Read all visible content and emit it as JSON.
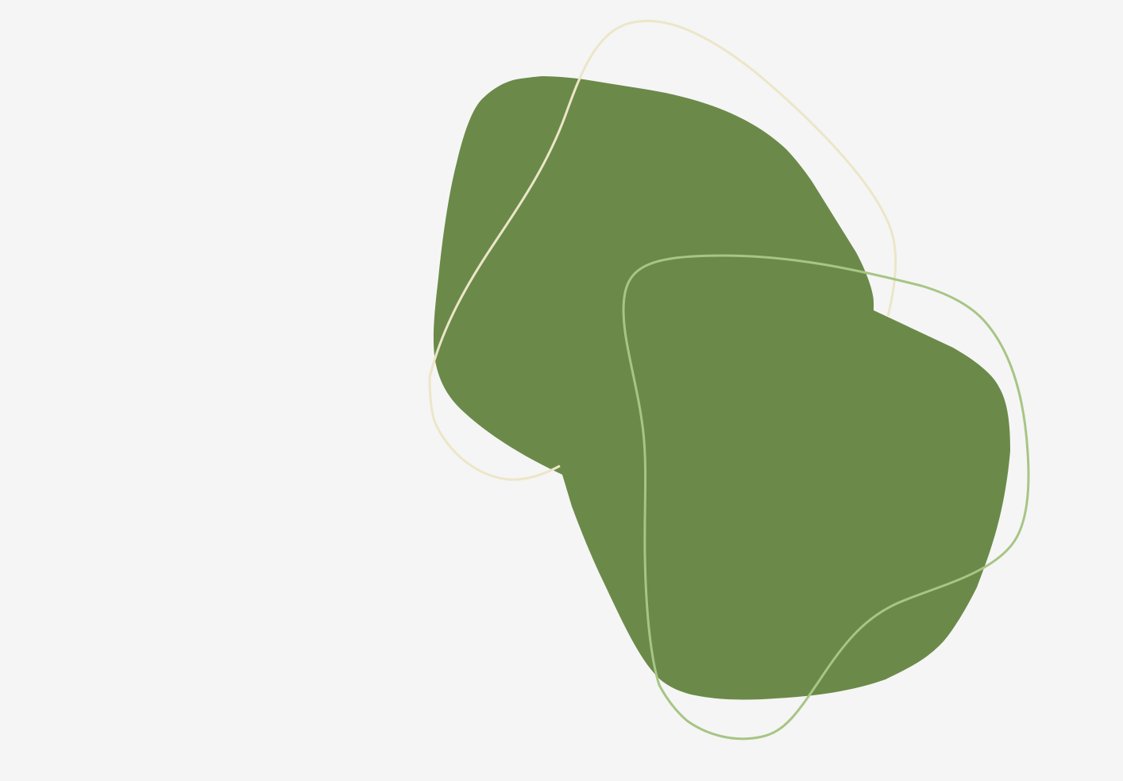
{
  "scene": {
    "background_color": "#f5f5f5",
    "shapes": [
      {
        "name": "green-blob",
        "kind": "filled-organic-shape",
        "color": "#6b8a49"
      },
      {
        "name": "cream-outline",
        "kind": "outline-organic-shape",
        "color": "#ece6c8"
      },
      {
        "name": "light-green-outline",
        "kind": "outline-organic-shape",
        "color": "#a7c585"
      }
    ]
  }
}
